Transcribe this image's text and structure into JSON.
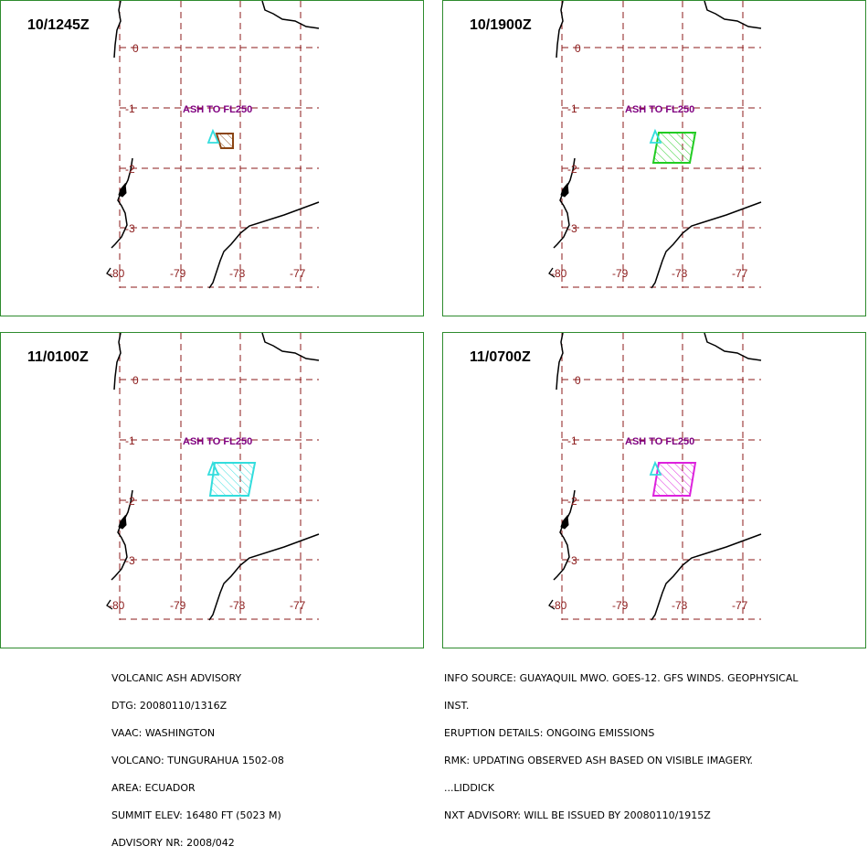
{
  "panels": [
    {
      "time": "10/1245Z",
      "ash_color": "#8b4513",
      "ash_polygon_desc": "small box near volcano"
    },
    {
      "time": "10/1900Z",
      "ash_color": "#22cc22",
      "ash_polygon_desc": "larger polygon"
    },
    {
      "time": "11/0100Z",
      "ash_color": "#33dddd",
      "ash_polygon_desc": "larger polygon"
    },
    {
      "time": "11/0700Z",
      "ash_color": "#dd22dd",
      "ash_polygon_desc": "larger polygon"
    }
  ],
  "map": {
    "ash_label": "ASH TO FL250",
    "lat_labels": [
      "0",
      "-1",
      "-2",
      "-3"
    ],
    "lon_labels": [
      "-80",
      "-79",
      "-78",
      "-77"
    ],
    "grid_color": "#8b1a1a",
    "label_color": "#800080",
    "volcano_color": "#33dddd"
  },
  "advisory_left": [
    "VOLCANIC ASH ADVISORY",
    "DTG: 20080110/1316Z",
    "VAAC: WASHINGTON",
    "VOLCANO: TUNGURAHUA 1502-08",
    "AREA: ECUADOR",
    "SUMMIT ELEV: 16480 FT (5023 M)",
    "ADVISORY NR: 2008/042"
  ],
  "advisory_right": [
    "INFO SOURCE: GUAYAQUIL MWO. GOES-12. GFS WINDS. GEOPHYSICAL",
    "INST.",
    "ERUPTION DETAILS: ONGOING EMISSIONS",
    "RMK: UPDATING OBSERVED ASH BASED ON VISIBLE IMAGERY.",
    "...LIDDICK",
    "NXT ADVISORY: WILL BE ISSUED BY 20080110/1915Z"
  ]
}
